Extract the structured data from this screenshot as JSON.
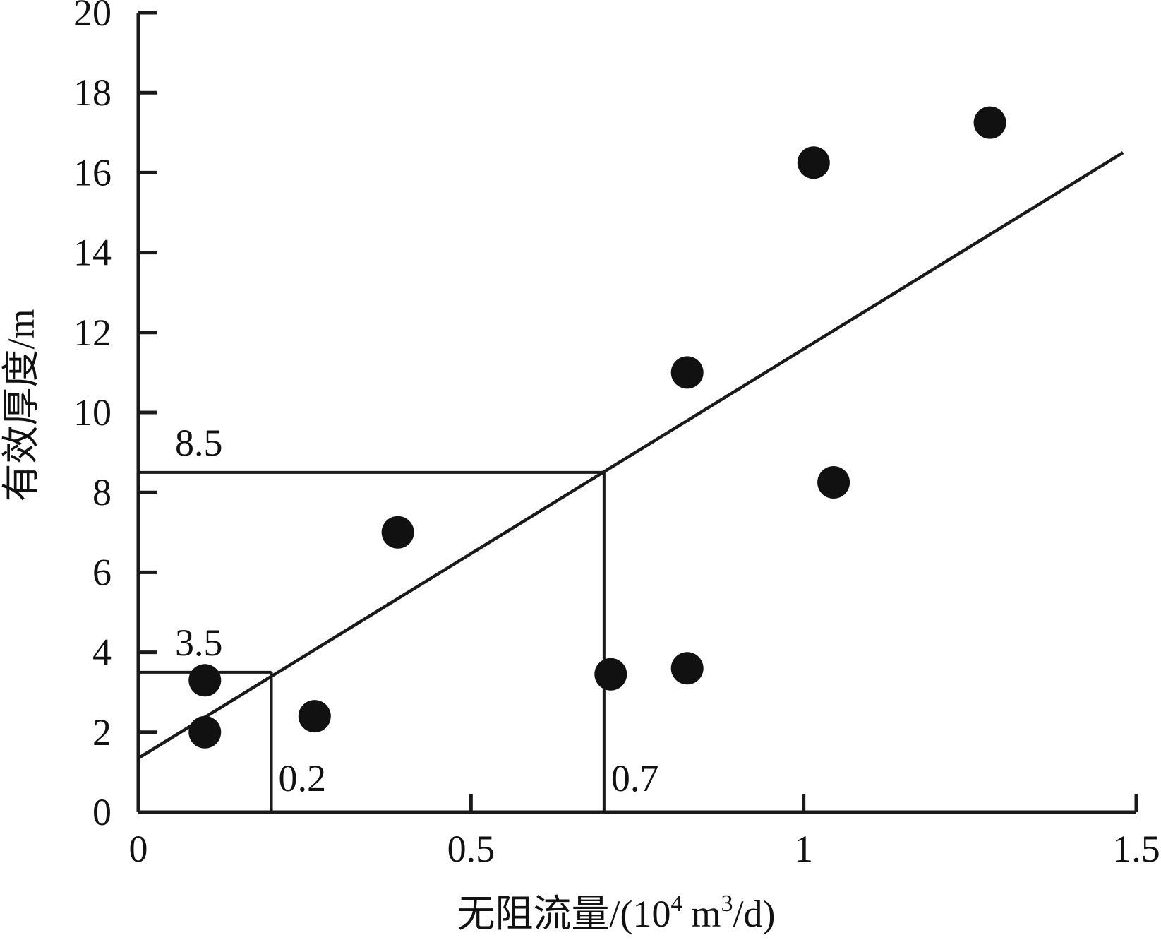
{
  "chart_data": {
    "type": "scatter",
    "title": "",
    "xlabel": "无阻流量/(10",
    "xlabel_exp1": "4",
    "xlabel_mid": "m",
    "xlabel_exp2": "3",
    "xlabel_end": "/d)",
    "ylabel": "有效厚度/m",
    "xlim": [
      0,
      1.5
    ],
    "ylim": [
      0,
      20
    ],
    "x_ticks": [
      0,
      0.5,
      1,
      1.5
    ],
    "x_tick_labels": [
      "0",
      "0.5",
      "1",
      "1.5"
    ],
    "y_ticks": [
      0,
      2,
      4,
      6,
      8,
      10,
      12,
      14,
      16,
      18,
      20
    ],
    "y_tick_labels": [
      "0",
      "2",
      "4",
      "6",
      "8",
      "10",
      "12",
      "14",
      "16",
      "18",
      "20"
    ],
    "grid": false,
    "points": [
      {
        "x": 0.1,
        "y": 3.3
      },
      {
        "x": 0.1,
        "y": 2.0
      },
      {
        "x": 0.265,
        "y": 2.4
      },
      {
        "x": 0.39,
        "y": 7.0
      },
      {
        "x": 0.71,
        "y": 3.45
      },
      {
        "x": 0.825,
        "y": 3.6
      },
      {
        "x": 0.825,
        "y": 11.0
      },
      {
        "x": 1.015,
        "y": 16.25
      },
      {
        "x": 1.045,
        "y": 8.25
      },
      {
        "x": 1.28,
        "y": 17.25
      }
    ],
    "fit_line": {
      "x": [
        0,
        1.48
      ],
      "y": [
        1.35,
        16.5
      ]
    },
    "guides": [
      {
        "x": 0.2,
        "y": 3.5,
        "x_label": "0.2",
        "y_label": "3.5"
      },
      {
        "x": 0.7,
        "y": 8.5,
        "x_label": "0.7",
        "y_label": "8.5"
      }
    ]
  }
}
